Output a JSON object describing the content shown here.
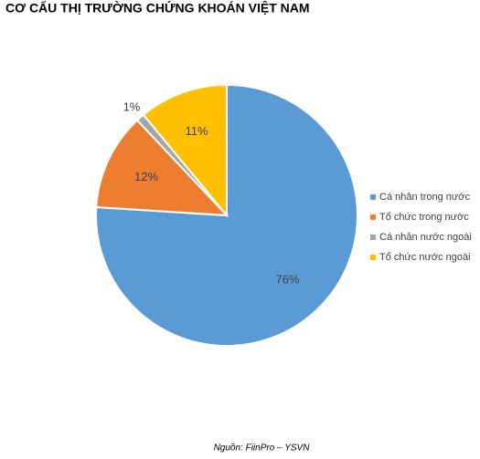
{
  "chart_data": {
    "type": "pie",
    "title": "CƠ CẤU THỊ TRƯỜNG CHỨNG KHOÁN VIỆT NAM",
    "categories": [
      "Cá nhân trong nước",
      "Tổ chức trong nước",
      "Cá nhân nước ngoài",
      "Tổ chức nước ngoài"
    ],
    "values": [
      76,
      12,
      1,
      11
    ],
    "value_labels": [
      "76%",
      "12%",
      "1%",
      "11%"
    ],
    "colors": [
      "#5b9bd5",
      "#ed7d31",
      "#a5a5a5",
      "#ffc000"
    ],
    "legend": "right",
    "source": "Nguồn: FiinPro – YSVN"
  }
}
